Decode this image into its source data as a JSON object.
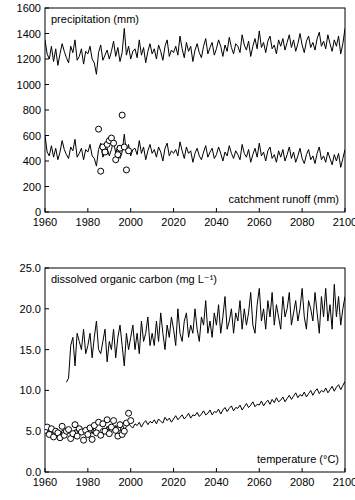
{
  "chart_data": [
    {
      "type": "line",
      "xlim": [
        1960,
        2100
      ],
      "xticks": [
        1960,
        1980,
        2000,
        2020,
        2040,
        2060,
        2080,
        2100
      ],
      "ylim": [
        0,
        1600
      ],
      "yticks": [
        0,
        200,
        400,
        600,
        800,
        1000,
        1200,
        1400,
        1600
      ],
      "grid": false,
      "x": [
        1960,
        1961,
        1962,
        1963,
        1964,
        1965,
        1966,
        1967,
        1968,
        1969,
        1970,
        1971,
        1972,
        1973,
        1974,
        1975,
        1976,
        1977,
        1978,
        1979,
        1980,
        1981,
        1982,
        1983,
        1984,
        1985,
        1986,
        1987,
        1988,
        1989,
        1990,
        1991,
        1992,
        1993,
        1994,
        1995,
        1996,
        1997,
        1998,
        1999,
        2000,
        2001,
        2002,
        2003,
        2004,
        2005,
        2006,
        2007,
        2008,
        2009,
        2010,
        2011,
        2012,
        2013,
        2014,
        2015,
        2016,
        2017,
        2018,
        2019,
        2020,
        2021,
        2022,
        2023,
        2024,
        2025,
        2026,
        2027,
        2028,
        2029,
        2030,
        2031,
        2032,
        2033,
        2034,
        2035,
        2036,
        2037,
        2038,
        2039,
        2040,
        2041,
        2042,
        2043,
        2044,
        2045,
        2046,
        2047,
        2048,
        2049,
        2050,
        2051,
        2052,
        2053,
        2054,
        2055,
        2056,
        2057,
        2058,
        2059,
        2060,
        2061,
        2062,
        2063,
        2064,
        2065,
        2066,
        2067,
        2068,
        2069,
        2070,
        2071,
        2072,
        2073,
        2074,
        2075,
        2076,
        2077,
        2078,
        2079,
        2080,
        2081,
        2082,
        2083,
        2084,
        2085,
        2086,
        2087,
        2088,
        2089,
        2090,
        2091,
        2092,
        2093,
        2094,
        2095,
        2096,
        2097,
        2098,
        2099,
        2100
      ],
      "series": [
        {
          "name": "precipitation (mm)",
          "color": "#000000",
          "values": [
            1350,
            1240,
            1200,
            1300,
            1180,
            1280,
            1150,
            1240,
            1320,
            1260,
            1210,
            1170,
            1300,
            1250,
            1350,
            1190,
            1220,
            1280,
            1160,
            1260,
            1240,
            1300,
            1200,
            1170,
            1080,
            1250,
            1310,
            1190,
            1230,
            1270,
            1200,
            1260,
            1340,
            1220,
            1290,
            1180,
            1250,
            1440,
            1230,
            1300,
            1200,
            1260,
            1280,
            1210,
            1350,
            1230,
            1290,
            1170,
            1260,
            1320,
            1240,
            1280,
            1200,
            1310,
            1260,
            1190,
            1300,
            1350,
            1220,
            1270,
            1250,
            1300,
            1230,
            1380,
            1280,
            1210,
            1330,
            1260,
            1300,
            1180,
            1270,
            1320,
            1250,
            1210,
            1300,
            1360,
            1240,
            1290,
            1330,
            1230,
            1280,
            1350,
            1300,
            1220,
            1310,
            1260,
            1370,
            1290,
            1240,
            1320,
            1300,
            1250,
            1390,
            1310,
            1270,
            1340,
            1220,
            1300,
            1360,
            1280,
            1420,
            1290,
            1330,
            1250,
            1340,
            1380,
            1280,
            1310,
            1240,
            1350,
            1300,
            1360,
            1270,
            1330,
            1390,
            1290,
            1350,
            1260,
            1320,
            1400,
            1310,
            1250,
            1340,
            1380,
            1290,
            1330,
            1270,
            1360,
            1410,
            1300,
            1340,
            1280,
            1390,
            1320,
            1260,
            1350,
            1300,
            1380,
            1240,
            1320,
            1440
          ]
        },
        {
          "name": "catchment runoff (mm)",
          "color": "#000000",
          "values": [
            600,
            470,
            440,
            520,
            430,
            500,
            410,
            470,
            560,
            490,
            450,
            420,
            510,
            480,
            570,
            430,
            460,
            500,
            410,
            490,
            470,
            530,
            440,
            420,
            360,
            490,
            540,
            430,
            470,
            500,
            440,
            490,
            560,
            460,
            520,
            420,
            470,
            610,
            460,
            530,
            440,
            490,
            500,
            450,
            560,
            460,
            510,
            410,
            480,
            530,
            460,
            490,
            430,
            510,
            470,
            400,
            500,
            540,
            440,
            480,
            460,
            490,
            440,
            550,
            480,
            420,
            510,
            460,
            480,
            390,
            460,
            500,
            440,
            410,
            470,
            520,
            430,
            470,
            500,
            420,
            450,
            510,
            460,
            400,
            470,
            440,
            520,
            460,
            420,
            480,
            450,
            410,
            530,
            460,
            430,
            490,
            390,
            450,
            500,
            430,
            540,
            440,
            470,
            400,
            480,
            510,
            420,
            450,
            390,
            480,
            430,
            490,
            400,
            450,
            510,
            420,
            470,
            390,
            440,
            500,
            420,
            380,
            450,
            490,
            410,
            440,
            380,
            460,
            510,
            410,
            440,
            390,
            470,
            420,
            370,
            450,
            400,
            460,
            350,
            420,
            490
          ]
        },
        {
          "type": "scatter",
          "marker": "circle",
          "color": "#000000",
          "x": [
            1985,
            1986,
            1987,
            1988,
            1989,
            1990,
            1991,
            1992,
            1993,
            1994,
            1995,
            1996,
            1997,
            1998,
            1999
          ],
          "values": [
            650,
            320,
            510,
            470,
            530,
            560,
            580,
            540,
            410,
            450,
            500,
            760,
            510,
            330,
            480
          ]
        }
      ]
    },
    {
      "type": "line",
      "xlim": [
        1960,
        2100
      ],
      "xticks": [
        1960,
        1980,
        2000,
        2020,
        2040,
        2060,
        2080,
        2100
      ],
      "ylim": [
        0,
        25
      ],
      "yticks": [
        {
          "value": 0,
          "label": "0.0"
        },
        {
          "value": 5,
          "label": "5.0"
        },
        {
          "value": 10,
          "label": "10.0"
        },
        {
          "value": 15,
          "label": "15.0"
        },
        {
          "value": 20,
          "label": "20.0"
        },
        {
          "value": 25,
          "label": "25.0"
        }
      ],
      "grid": false,
      "x": [
        1960,
        1961,
        1962,
        1963,
        1964,
        1965,
        1966,
        1967,
        1968,
        1969,
        1970,
        1971,
        1972,
        1973,
        1974,
        1975,
        1976,
        1977,
        1978,
        1979,
        1980,
        1981,
        1982,
        1983,
        1984,
        1985,
        1986,
        1987,
        1988,
        1989,
        1990,
        1991,
        1992,
        1993,
        1994,
        1995,
        1996,
        1997,
        1998,
        1999,
        2000,
        2001,
        2002,
        2003,
        2004,
        2005,
        2006,
        2007,
        2008,
        2009,
        2010,
        2011,
        2012,
        2013,
        2014,
        2015,
        2016,
        2017,
        2018,
        2019,
        2020,
        2021,
        2022,
        2023,
        2024,
        2025,
        2026,
        2027,
        2028,
        2029,
        2030,
        2031,
        2032,
        2033,
        2034,
        2035,
        2036,
        2037,
        2038,
        2039,
        2040,
        2041,
        2042,
        2043,
        2044,
        2045,
        2046,
        2047,
        2048,
        2049,
        2050,
        2051,
        2052,
        2053,
        2054,
        2055,
        2056,
        2057,
        2058,
        2059,
        2060,
        2061,
        2062,
        2063,
        2064,
        2065,
        2066,
        2067,
        2068,
        2069,
        2070,
        2071,
        2072,
        2073,
        2074,
        2075,
        2076,
        2077,
        2078,
        2079,
        2080,
        2081,
        2082,
        2083,
        2084,
        2085,
        2086,
        2087,
        2088,
        2089,
        2090,
        2091,
        2092,
        2093,
        2094,
        2095,
        2096,
        2097,
        2098,
        2099,
        2100
      ],
      "series": [
        {
          "name": "dissolved organic carbon (mg L⁻¹)",
          "color": "#000000",
          "values": [
            null,
            null,
            null,
            null,
            null,
            null,
            null,
            null,
            null,
            null,
            11.0,
            11.5,
            15.5,
            16.5,
            13.0,
            17.0,
            16.0,
            15.0,
            17.5,
            14.5,
            15.5,
            17.0,
            14.0,
            16.5,
            18.5,
            15.0,
            14.5,
            16.0,
            17.5,
            13.5,
            16.0,
            15.0,
            17.5,
            14.0,
            16.5,
            18.0,
            15.5,
            13.0,
            17.0,
            15.0,
            16.5,
            18.0,
            15.0,
            17.0,
            14.5,
            18.5,
            16.0,
            17.0,
            19.0,
            15.5,
            17.0,
            15.5,
            18.5,
            16.0,
            19.5,
            17.0,
            15.0,
            18.0,
            16.5,
            19.0,
            17.5,
            15.5,
            20.0,
            17.0,
            16.0,
            18.5,
            19.5,
            16.5,
            18.0,
            17.0,
            20.0,
            17.5,
            16.0,
            19.0,
            18.0,
            21.0,
            17.0,
            18.5,
            16.5,
            19.5,
            18.0,
            20.5,
            17.0,
            19.0,
            21.5,
            17.5,
            18.5,
            20.0,
            17.0,
            19.5,
            18.5,
            21.0,
            17.5,
            20.0,
            18.0,
            19.5,
            22.0,
            18.0,
            17.0,
            20.5,
            22.5,
            18.5,
            20.0,
            17.5,
            21.0,
            19.0,
            22.0,
            18.0,
            20.5,
            19.0,
            17.5,
            21.5,
            19.0,
            20.0,
            22.0,
            18.0,
            19.5,
            21.0,
            18.5,
            20.0,
            22.5,
            19.0,
            17.5,
            21.0,
            20.0,
            18.5,
            22.0,
            19.5,
            17.0,
            21.5,
            19.0,
            22.5,
            18.5,
            20.5,
            17.5,
            23.0,
            19.0,
            21.5,
            18.0,
            20.0,
            21.5
          ]
        },
        {
          "name": "temperature (°C)",
          "color": "#000000",
          "values": [
            4.8,
            5.2,
            4.5,
            5.0,
            4.6,
            5.3,
            4.9,
            4.4,
            5.1,
            5.0,
            4.7,
            5.4,
            4.9,
            4.6,
            5.2,
            5.0,
            4.5,
            5.3,
            4.8,
            5.1,
            4.9,
            5.3,
            4.7,
            5.5,
            5.0,
            4.6,
            5.2,
            5.4,
            4.8,
            5.6,
            5.1,
            5.5,
            4.9,
            5.7,
            5.2,
            5.0,
            5.8,
            5.3,
            5.5,
            6.0,
            5.6,
            5.4,
            5.9,
            5.7,
            6.1,
            5.5,
            6.0,
            6.3,
            5.8,
            6.2,
            6.0,
            6.4,
            5.9,
            6.5,
            6.2,
            6.0,
            6.7,
            6.3,
            6.6,
            6.1,
            6.5,
            6.9,
            6.4,
            6.7,
            7.0,
            6.5,
            6.8,
            7.2,
            6.6,
            7.0,
            6.9,
            7.3,
            6.8,
            7.1,
            7.5,
            7.0,
            7.2,
            7.6,
            7.0,
            7.4,
            7.3,
            7.7,
            7.1,
            7.6,
            7.9,
            7.4,
            7.8,
            8.1,
            7.5,
            7.9,
            7.8,
            8.2,
            7.6,
            8.0,
            8.4,
            7.9,
            8.2,
            8.6,
            8.0,
            8.3,
            8.2,
            8.7,
            8.1,
            8.5,
            8.8,
            8.3,
            8.9,
            8.5,
            9.1,
            8.6,
            8.8,
            9.2,
            8.6,
            9.0,
            9.4,
            8.9,
            9.3,
            9.7,
            9.1,
            9.5,
            9.3,
            9.8,
            9.2,
            9.6,
            10.0,
            9.4,
            9.9,
            10.2,
            9.6,
            10.0,
            9.8,
            10.3,
            9.7,
            10.1,
            10.5,
            9.9,
            10.4,
            10.7,
            10.1,
            10.6,
            11.1
          ]
        },
        {
          "type": "scatter",
          "marker": "circle",
          "color": "#000000",
          "x": [
            1960,
            1961,
            1962,
            1963,
            1964,
            1965,
            1966,
            1967,
            1968,
            1969,
            1970,
            1971,
            1972,
            1973,
            1974,
            1975,
            1976,
            1977,
            1978,
            1979,
            1980,
            1981,
            1982,
            1983,
            1984,
            1985,
            1986,
            1987,
            1988,
            1989,
            1990,
            1991,
            1992,
            1993,
            1994,
            1995,
            1996,
            1997,
            1998,
            1999,
            2000
          ],
          "values": [
            5.1,
            5.5,
            4.6,
            5.3,
            4.3,
            5.0,
            4.8,
            4.2,
            5.6,
            4.5,
            5.0,
            5.2,
            4.1,
            4.7,
            5.8,
            4.4,
            5.3,
            4.9,
            3.9,
            5.1,
            4.6,
            5.4,
            4.0,
            5.7,
            4.8,
            6.1,
            4.5,
            5.9,
            5.0,
            6.4,
            4.7,
            5.5,
            6.3,
            5.1,
            4.4,
            5.8,
            4.6,
            5.0,
            6.0,
            7.2,
            6.3
          ]
        }
      ]
    }
  ]
}
